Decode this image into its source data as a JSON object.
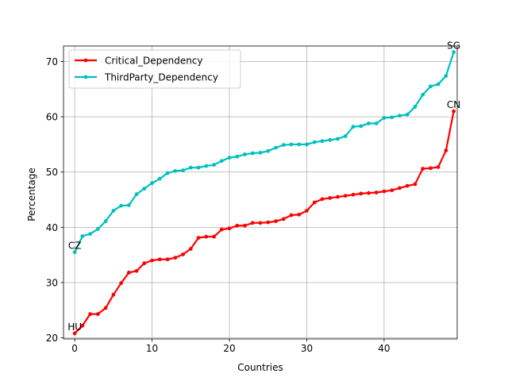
{
  "chart_data": {
    "type": "line",
    "xlabel": "Countries",
    "ylabel": "Percentage",
    "xlim": [
      -1.45,
      49.45
    ],
    "ylim": [
      19.8,
      72.8
    ],
    "xticks": [
      0,
      10,
      20,
      30,
      40
    ],
    "yticks": [
      20,
      30,
      40,
      50,
      60,
      70
    ],
    "grid": true,
    "legend_position": "upper-left",
    "x": [
      0,
      1,
      2,
      3,
      4,
      5,
      6,
      7,
      8,
      9,
      10,
      11,
      12,
      13,
      14,
      15,
      16,
      17,
      18,
      19,
      20,
      21,
      22,
      23,
      24,
      25,
      26,
      27,
      28,
      29,
      30,
      31,
      32,
      33,
      34,
      35,
      36,
      37,
      38,
      39,
      40,
      41,
      42,
      43,
      44,
      45,
      46,
      47,
      48,
      49
    ],
    "series": [
      {
        "name": "Critical_Dependency",
        "color": "#ff0000",
        "values": [
          20.8,
          22.2,
          24.3,
          24.3,
          25.4,
          27.8,
          29.9,
          31.8,
          32.1,
          33.5,
          34.0,
          34.2,
          34.2,
          34.5,
          35.1,
          36.1,
          38.1,
          38.3,
          38.3,
          39.6,
          39.8,
          40.3,
          40.3,
          40.8,
          40.8,
          40.9,
          41.1,
          41.5,
          42.2,
          42.3,
          43.0,
          44.5,
          45.1,
          45.3,
          45.5,
          45.7,
          45.9,
          46.1,
          46.2,
          46.3,
          46.5,
          46.7,
          47.1,
          47.5,
          47.8,
          50.6,
          50.7,
          50.9,
          53.9,
          61.0
        ],
        "annotations": [
          {
            "index": 0,
            "text": "HU"
          },
          {
            "index": 49,
            "text": "CN"
          }
        ]
      },
      {
        "name": "ThirdParty_Dependency",
        "color": "#00bfbf",
        "values": [
          35.5,
          38.4,
          38.8,
          39.7,
          41.1,
          43.0,
          43.9,
          44.0,
          46.0,
          47.0,
          48.0,
          48.8,
          49.8,
          50.2,
          50.3,
          50.8,
          50.8,
          51.1,
          51.3,
          52.0,
          52.6,
          52.8,
          53.2,
          53.4,
          53.5,
          53.8,
          54.4,
          54.9,
          55.0,
          55.0,
          55.0,
          55.4,
          55.6,
          55.8,
          56.0,
          56.5,
          58.2,
          58.3,
          58.8,
          58.8,
          59.8,
          59.9,
          60.2,
          60.4,
          61.8,
          64.0,
          65.5,
          65.9,
          67.4,
          71.7
        ],
        "annotations": [
          {
            "index": 0,
            "text": "CZ"
          },
          {
            "index": 49,
            "text": "SG"
          }
        ]
      }
    ]
  }
}
